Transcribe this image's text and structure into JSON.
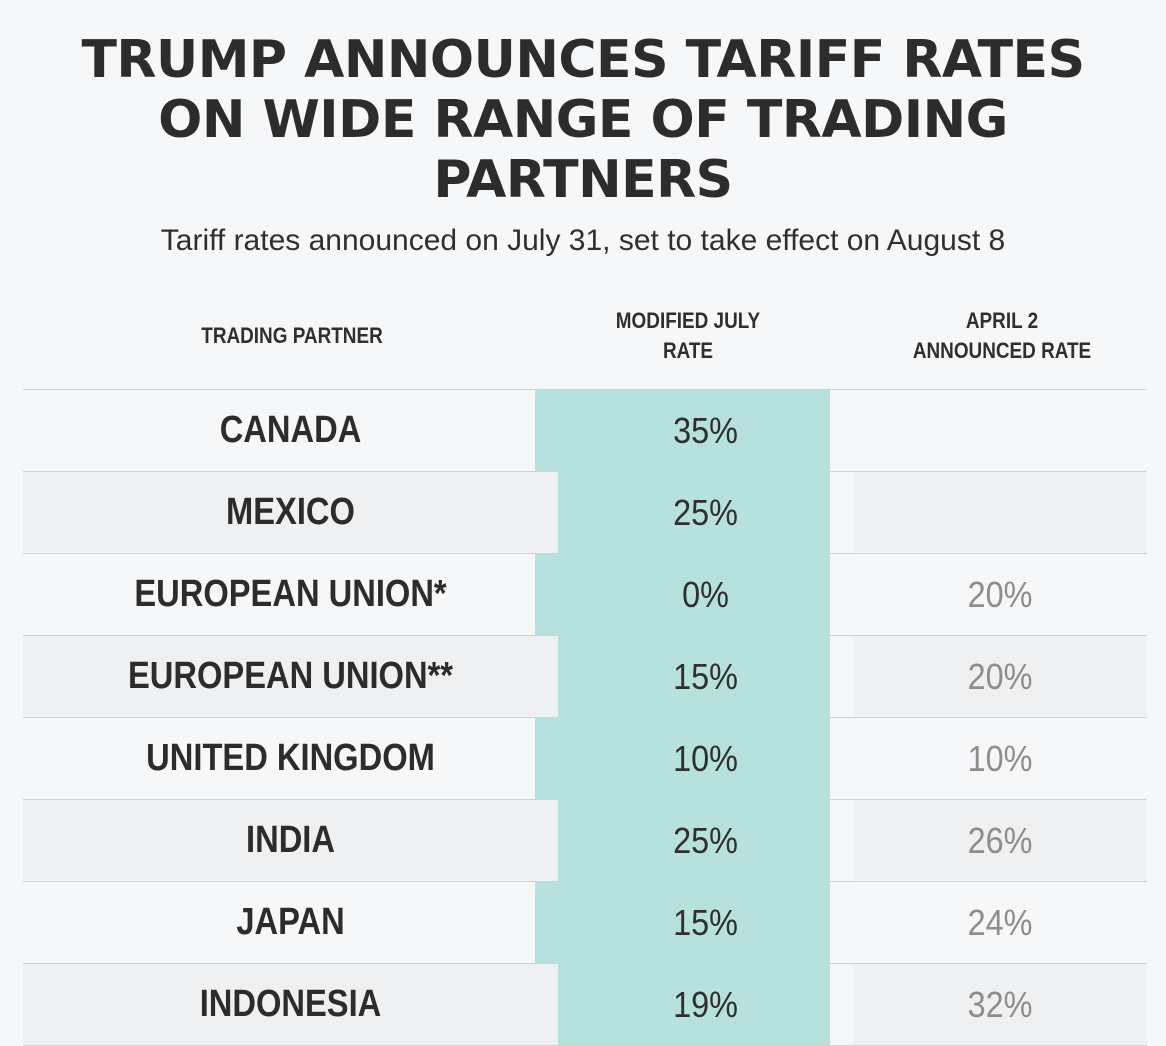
{
  "chart_data": {
    "type": "table",
    "title_lines": [
      "TRUMP ANNOUNCES TARIFF RATES",
      "ON WIDE RANGE OF TRADING",
      "PARTNERS"
    ],
    "subtitle": "Tariff rates announced on July 31, set to take effect on August 8",
    "columns": {
      "partner": "TRADING PARTNER",
      "july": [
        "MODIFIED JULY",
        "RATE"
      ],
      "april": [
        "APRIL 2",
        "ANNOUNCED RATE"
      ]
    },
    "rows": [
      {
        "partner": "CANADA",
        "july": "35%",
        "april": ""
      },
      {
        "partner": "MEXICO",
        "july": "25%",
        "april": ""
      },
      {
        "partner": "EUROPEAN UNION*",
        "july": "0%",
        "april": "20%"
      },
      {
        "partner": "EUROPEAN UNION**",
        "july": "15%",
        "april": "20%"
      },
      {
        "partner": "UNITED KINGDOM",
        "july": "10%",
        "april": "10%"
      },
      {
        "partner": "INDIA",
        "july": "25%",
        "april": "26%"
      },
      {
        "partner": "JAPAN",
        "july": "15%",
        "april": "24%"
      },
      {
        "partner": "INDONESIA",
        "july": "19%",
        "april": "32%"
      }
    ],
    "highlight_color": "#b7e1dc",
    "alt_row_color": "#eef0f2"
  }
}
